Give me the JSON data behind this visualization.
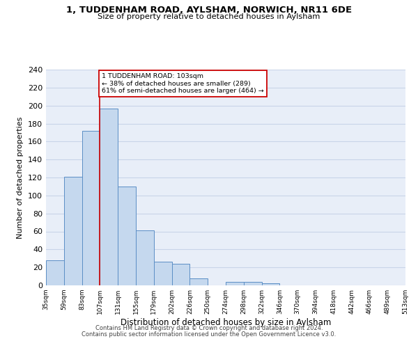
{
  "title": "1, TUDDENHAM ROAD, AYLSHAM, NORWICH, NR11 6DE",
  "subtitle": "Size of property relative to detached houses in Aylsham",
  "xlabel": "Distribution of detached houses by size in Aylsham",
  "ylabel": "Number of detached properties",
  "bar_values": [
    28,
    121,
    172,
    197,
    110,
    61,
    26,
    24,
    8,
    0,
    4,
    4,
    2,
    0,
    0,
    0,
    0,
    0,
    0,
    0
  ],
  "tick_labels": [
    "35sqm",
    "59sqm",
    "83sqm",
    "107sqm",
    "131sqm",
    "155sqm",
    "179sqm",
    "202sqm",
    "226sqm",
    "250sqm",
    "274sqm",
    "298sqm",
    "322sqm",
    "346sqm",
    "370sqm",
    "394sqm",
    "418sqm",
    "442sqm",
    "466sqm",
    "489sqm",
    "513sqm"
  ],
  "bar_color": "#c5d8ee",
  "bar_edge_color": "#5b8ec5",
  "vline_x_bar": 3,
  "vline_color": "#cc0000",
  "annotation_text": "1 TUDDENHAM ROAD: 103sqm\n← 38% of detached houses are smaller (289)\n61% of semi-detached houses are larger (464) →",
  "annotation_box_facecolor": "#ffffff",
  "annotation_box_edgecolor": "#cc0000",
  "ylim": [
    0,
    240
  ],
  "yticks": [
    0,
    20,
    40,
    60,
    80,
    100,
    120,
    140,
    160,
    180,
    200,
    220,
    240
  ],
  "grid_color": "#c8d4e8",
  "plot_bg_color": "#e8eef8",
  "fig_bg_color": "#ffffff",
  "footer_line1": "Contains HM Land Registry data © Crown copyright and database right 2024.",
  "footer_line2": "Contains public sector information licensed under the Open Government Licence v3.0."
}
